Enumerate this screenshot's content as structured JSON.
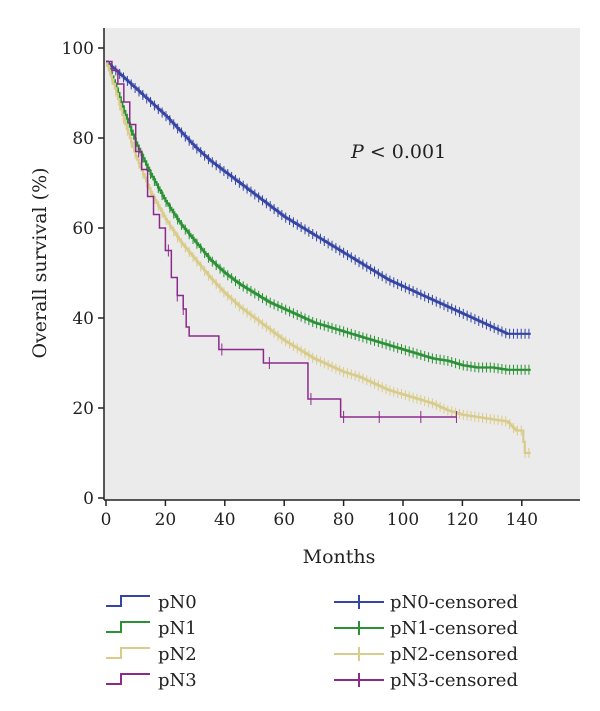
{
  "chart_data": {
    "type": "line",
    "title": "",
    "xlabel": "Months",
    "ylabel": "Overall survival (%)",
    "xlim": [
      0,
      150
    ],
    "ylim": [
      0,
      100
    ],
    "xticks": [
      0,
      20,
      40,
      60,
      80,
      100,
      120,
      140
    ],
    "yticks": [
      0,
      20,
      40,
      60,
      80,
      100
    ],
    "grid": false,
    "background_color": "#ebebeb",
    "legend_position": "bottom",
    "annotation": {
      "italic": "P",
      "rest": " < 0.001"
    },
    "series": [
      {
        "name": "pN0",
        "censored_name": "pN0-censored",
        "color": "#3545a5",
        "x": [
          0,
          5,
          10,
          15,
          20,
          25,
          30,
          35,
          40,
          45,
          50,
          55,
          60,
          65,
          70,
          75,
          80,
          85,
          90,
          95,
          100,
          105,
          110,
          115,
          120,
          125,
          130,
          135,
          138,
          143
        ],
        "y": [
          97,
          94,
          91,
          88,
          85,
          81.5,
          78,
          75,
          72.5,
          70,
          67.5,
          65,
          62.5,
          60.5,
          58.5,
          56.5,
          54.5,
          52.5,
          50.5,
          48.5,
          47,
          45.5,
          44,
          42.5,
          41,
          39.5,
          38,
          36.5,
          36.5,
          36.5
        ]
      },
      {
        "name": "pN1",
        "censored_name": "pN1-censored",
        "color": "#2a9135",
        "x": [
          0,
          3,
          6,
          10,
          15,
          20,
          25,
          30,
          35,
          40,
          45,
          50,
          55,
          60,
          65,
          70,
          75,
          80,
          85,
          90,
          95,
          100,
          105,
          110,
          115,
          120,
          125,
          130,
          135,
          140,
          143
        ],
        "y": [
          97,
          92,
          86,
          79,
          72,
          66,
          61,
          57,
          53,
          50,
          47.5,
          45.5,
          43.5,
          42,
          40.5,
          39,
          38,
          37,
          36,
          35,
          34,
          33,
          32,
          31,
          30.5,
          29.5,
          29,
          29,
          28.5,
          28.5,
          28.5
        ]
      },
      {
        "name": "pN2",
        "censored_name": "pN2-censored",
        "color": "#d9cc8a",
        "x": [
          0,
          3,
          6,
          10,
          15,
          20,
          25,
          30,
          35,
          40,
          45,
          50,
          55,
          60,
          65,
          70,
          75,
          80,
          85,
          90,
          95,
          100,
          105,
          110,
          115,
          120,
          125,
          130,
          135,
          138,
          140,
          141,
          143
        ],
        "y": [
          97,
          91,
          84,
          76,
          68,
          62,
          57,
          53,
          49,
          45.5,
          42.5,
          40,
          37.5,
          35,
          33,
          31,
          29.5,
          28,
          27,
          25.5,
          24,
          23,
          22,
          21,
          19.5,
          18.5,
          18,
          17.5,
          17,
          15,
          15,
          10,
          10
        ]
      },
      {
        "name": "pN3",
        "censored_name": "pN3-censored",
        "color": "#8c2a8c",
        "steps": [
          [
            0,
            97
          ],
          [
            2,
            95
          ],
          [
            4,
            92
          ],
          [
            6,
            88
          ],
          [
            8,
            83
          ],
          [
            10,
            77
          ],
          [
            12,
            73
          ],
          [
            14,
            67
          ],
          [
            16,
            63
          ],
          [
            18,
            60
          ],
          [
            20,
            55
          ],
          [
            22,
            49
          ],
          [
            24,
            45
          ],
          [
            26,
            42
          ],
          [
            27,
            38
          ],
          [
            28,
            36
          ],
          [
            38,
            36
          ],
          [
            38,
            33
          ],
          [
            53,
            33
          ],
          [
            53,
            30
          ],
          [
            68,
            30
          ],
          [
            68,
            22
          ],
          [
            79,
            22
          ],
          [
            79,
            18
          ],
          [
            118,
            18
          ]
        ],
        "censored_x": [
          11,
          21,
          24,
          26,
          39,
          55,
          69,
          80,
          92,
          106,
          118
        ]
      }
    ]
  }
}
